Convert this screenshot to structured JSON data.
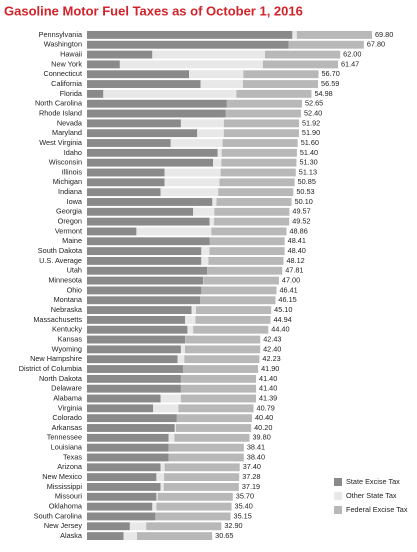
{
  "chart_data": {
    "type": "stacked-bar-horizontal",
    "title": "Gasoline Motor Fuel Taxes as of October 1, 2016",
    "categories": [
      "Pennsylvania",
      "Washington",
      "Hawaii",
      "New York",
      "Connecticut",
      "California",
      "Florida",
      "North Carolina",
      "Rhode Island",
      "Nevada",
      "Maryland",
      "West Virginia",
      "Idaho",
      "Wisconsin",
      "Illinois",
      "Michigan",
      "Indiana",
      "Iowa",
      "Georgia",
      "Oregon",
      "Vermont",
      "Maine",
      "South Dakota",
      "U.S. Average",
      "Utah",
      "Minnesota",
      "Ohio",
      "Montana",
      "Nebraska",
      "Massachusetts",
      "Kentucky",
      "Kansas",
      "Wyoming",
      "New Hampshire",
      "District of Columbia",
      "North Dakota",
      "Delaware",
      "Alabama",
      "Virginia",
      "Colorado",
      "Arkansas",
      "Tennessee",
      "Louisiana",
      "Texas",
      "Arizona",
      "New Mexico",
      "Mississippi",
      "Missouri",
      "Oklahoma",
      "South Carolina",
      "New Jersey",
      "Alaska"
    ],
    "series": [
      {
        "name": "State Excise Tax",
        "color": "#8a8a8a",
        "values": [
          50.3,
          49.4,
          16.0,
          8.05,
          25.0,
          27.8,
          4.0,
          34.25,
          34.0,
          23.0,
          27.0,
          20.5,
          32.0,
          30.9,
          19.0,
          19.0,
          18.0,
          30.7,
          26.0,
          30.0,
          12.1,
          30.01,
          28.0,
          28.0,
          29.41,
          28.5,
          28.01,
          27.75,
          25.6,
          24.0,
          24.6,
          24.0,
          23.0,
          22.2,
          23.5,
          23.0,
          23.0,
          18.0,
          16.2,
          22.0,
          21.5,
          20.0,
          20.01,
          20.0,
          18.0,
          17.0,
          18.0,
          17.0,
          16.0,
          16.75,
          10.5,
          8.95
        ]
      },
      {
        "name": "Other State Tax",
        "color": "#e8e8e8",
        "values": [
          1.1,
          0,
          27.6,
          35.02,
          13.3,
          10.39,
          32.58,
          0,
          0,
          10.52,
          6.5,
          12.7,
          1.0,
          2.0,
          13.73,
          13.45,
          14.13,
          1.0,
          5.17,
          1.12,
          18.36,
          0,
          2.0,
          1.72,
          0,
          0.1,
          0,
          0,
          1.1,
          2.54,
          1.4,
          0.03,
          1.0,
          1.63,
          0,
          0,
          0,
          4.99,
          6.19,
          0,
          0.3,
          1.4,
          0,
          0,
          1.0,
          1.88,
          0.79,
          0.3,
          1.0,
          0,
          4.0,
          3.3
        ]
      },
      {
        "name": "Federal Excise Tax",
        "color": "#b8b8b8",
        "values": [
          18.4,
          18.4,
          18.4,
          18.4,
          18.4,
          18.4,
          18.4,
          18.4,
          18.4,
          18.4,
          18.4,
          18.4,
          18.4,
          18.4,
          18.4,
          18.4,
          18.4,
          18.4,
          18.4,
          18.4,
          18.4,
          18.4,
          18.4,
          18.4,
          18.4,
          18.4,
          18.4,
          18.4,
          18.4,
          18.4,
          18.4,
          18.4,
          18.4,
          18.4,
          18.4,
          18.4,
          18.4,
          18.4,
          18.4,
          18.4,
          18.4,
          18.4,
          18.4,
          18.4,
          18.4,
          18.4,
          18.4,
          18.4,
          18.4,
          18.4,
          18.4,
          18.4
        ]
      }
    ],
    "totals": [
      69.8,
      67.8,
      62,
      61.47,
      56.7,
      56.59,
      54.98,
      52.65,
      52.4,
      51.92,
      51.9,
      51.6,
      51.4,
      51.3,
      51.13,
      50.85,
      50.53,
      50.1,
      49.57,
      49.52,
      48.86,
      48.41,
      48.4,
      48.12,
      47.81,
      47,
      46.41,
      46.15,
      45.1,
      44.94,
      44.4,
      42.43,
      42.4,
      42.23,
      41.9,
      41.4,
      41.4,
      41.39,
      40.79,
      40.4,
      40.2,
      39.8,
      38.41,
      38.4,
      37.4,
      37.28,
      37.19,
      35.7,
      35.4,
      35.15,
      32.9,
      30.65
    ],
    "total_labels": [
      "69.80",
      "67.80",
      "62.00",
      "61.47",
      "56.70",
      "56.59",
      "54.98",
      "52.65",
      "52.40",
      "51.92",
      "51.90",
      "51.60",
      "51.40",
      "51.30",
      "51.13",
      "50.85",
      "50.53",
      "50.10",
      "49.57",
      "49.52",
      "48.86",
      "48.41",
      "48.40",
      "48.12",
      "47.81",
      "47.00",
      "46.41",
      "46.15",
      "45.10",
      "44.94",
      "44.40",
      "42.43",
      "42.40",
      "42.23",
      "41.90",
      "41.40",
      "41.40",
      "41.39",
      "40.79",
      "40.40",
      "40.20",
      "39.80",
      "38.41",
      "38.40",
      "37.40",
      "37.28",
      "37.19",
      "35.70",
      "35.40",
      "35.15",
      "32.90",
      "30.65"
    ],
    "legend": "bottom-right"
  }
}
